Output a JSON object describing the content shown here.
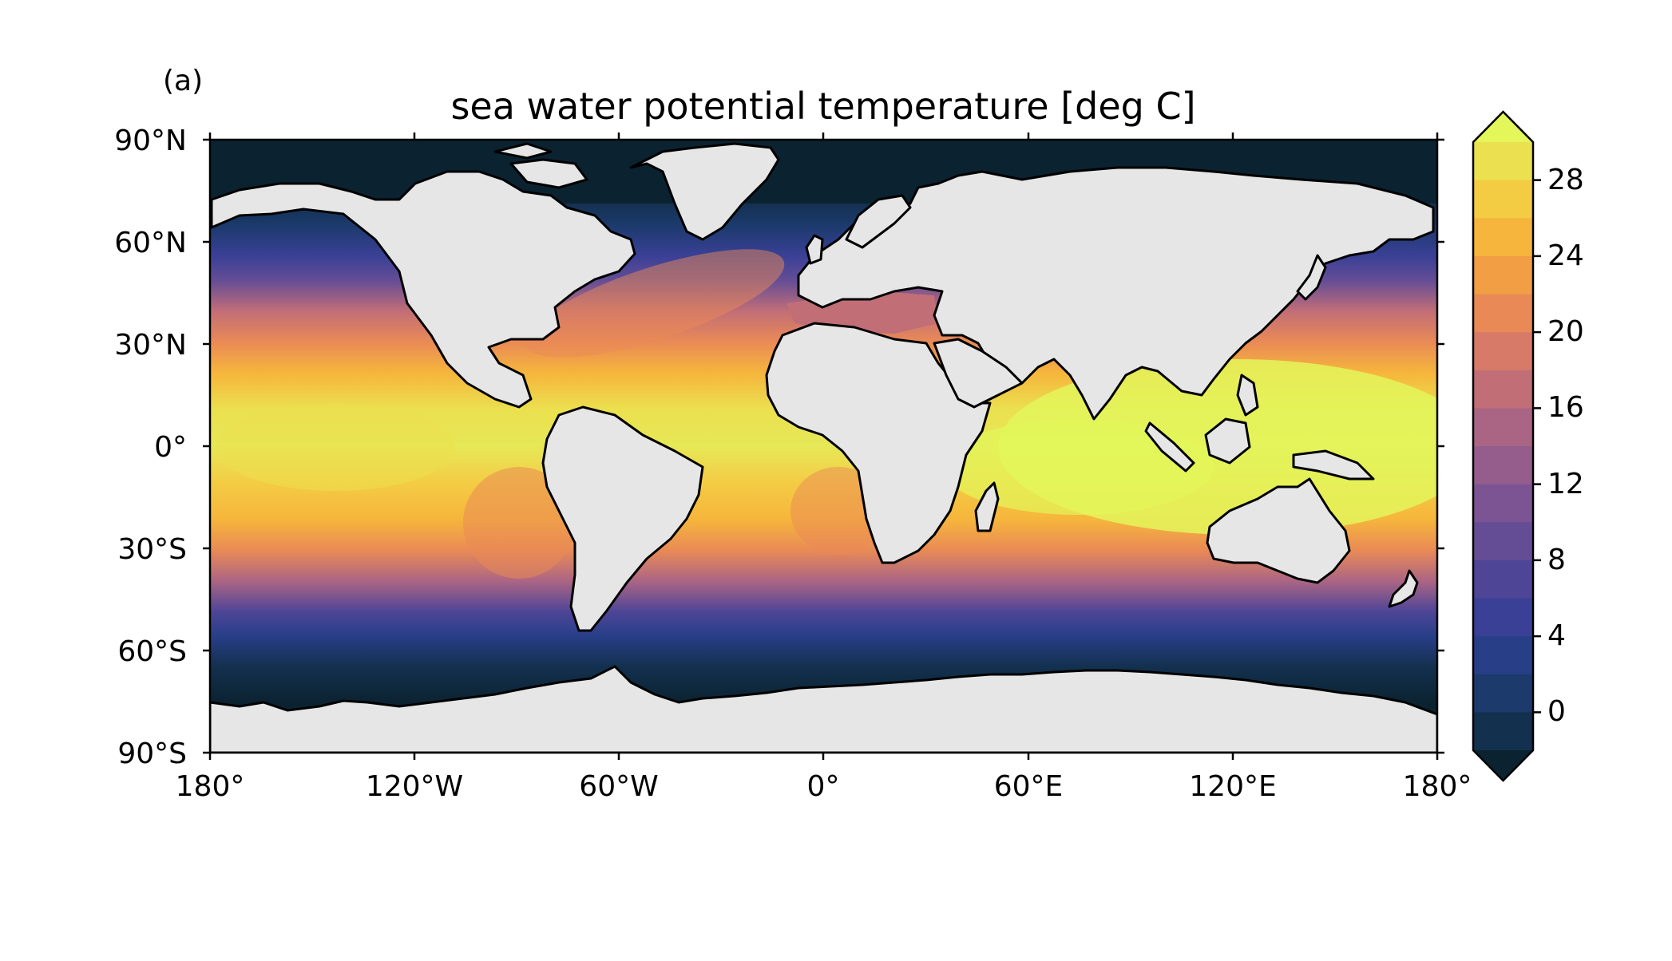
{
  "panel_label": "(a)",
  "title": "sea water potential temperature [deg C]",
  "map": {
    "projection": "PlateCarree",
    "lon_range": [
      -180,
      180
    ],
    "lat_range": [
      -90,
      90
    ],
    "lon_ticks": [
      "180°",
      "120°W",
      "60°W",
      "0°",
      "60°E",
      "120°E",
      "180°"
    ],
    "lat_ticks": [
      "90°N",
      "60°N",
      "30°N",
      "0°",
      "30°S",
      "60°S",
      "90°S"
    ],
    "land_color": "#e6e6e6",
    "coastline_color": "#000000"
  },
  "colorbar": {
    "ticks": [
      "28",
      "24",
      "20",
      "16",
      "12",
      "8",
      "4",
      "0"
    ],
    "tick_values": [
      28,
      24,
      20,
      16,
      12,
      8,
      4,
      0
    ],
    "vmin": -2,
    "vmax": 30,
    "levels": 16,
    "extend": "both",
    "colors": [
      "#0b2230",
      "#13304f",
      "#1c3a6c",
      "#283f88",
      "#3a4096",
      "#4e4597",
      "#654d96",
      "#7c5493",
      "#945d8c",
      "#ab6584",
      "#c26e77",
      "#d77b68",
      "#e98a56",
      "#f29e45",
      "#f6b53c",
      "#f4cc44",
      "#ebe04f",
      "#e3f65a"
    ]
  },
  "chart_data": {
    "type": "heatmap",
    "title": "sea water potential temperature [deg C]",
    "xlabel": "",
    "ylabel": "",
    "xlim": [
      -180,
      180
    ],
    "ylim": [
      -90,
      90
    ],
    "zlim": [
      -2,
      30
    ],
    "approx_zonal_mean_sst": {
      "lat": [
        -75,
        -60,
        -45,
        -30,
        -15,
        0,
        15,
        30,
        45,
        60,
        75
      ],
      "value": [
        -1,
        1,
        8,
        18,
        24,
        27,
        27,
        22,
        12,
        5,
        -1
      ]
    }
  }
}
